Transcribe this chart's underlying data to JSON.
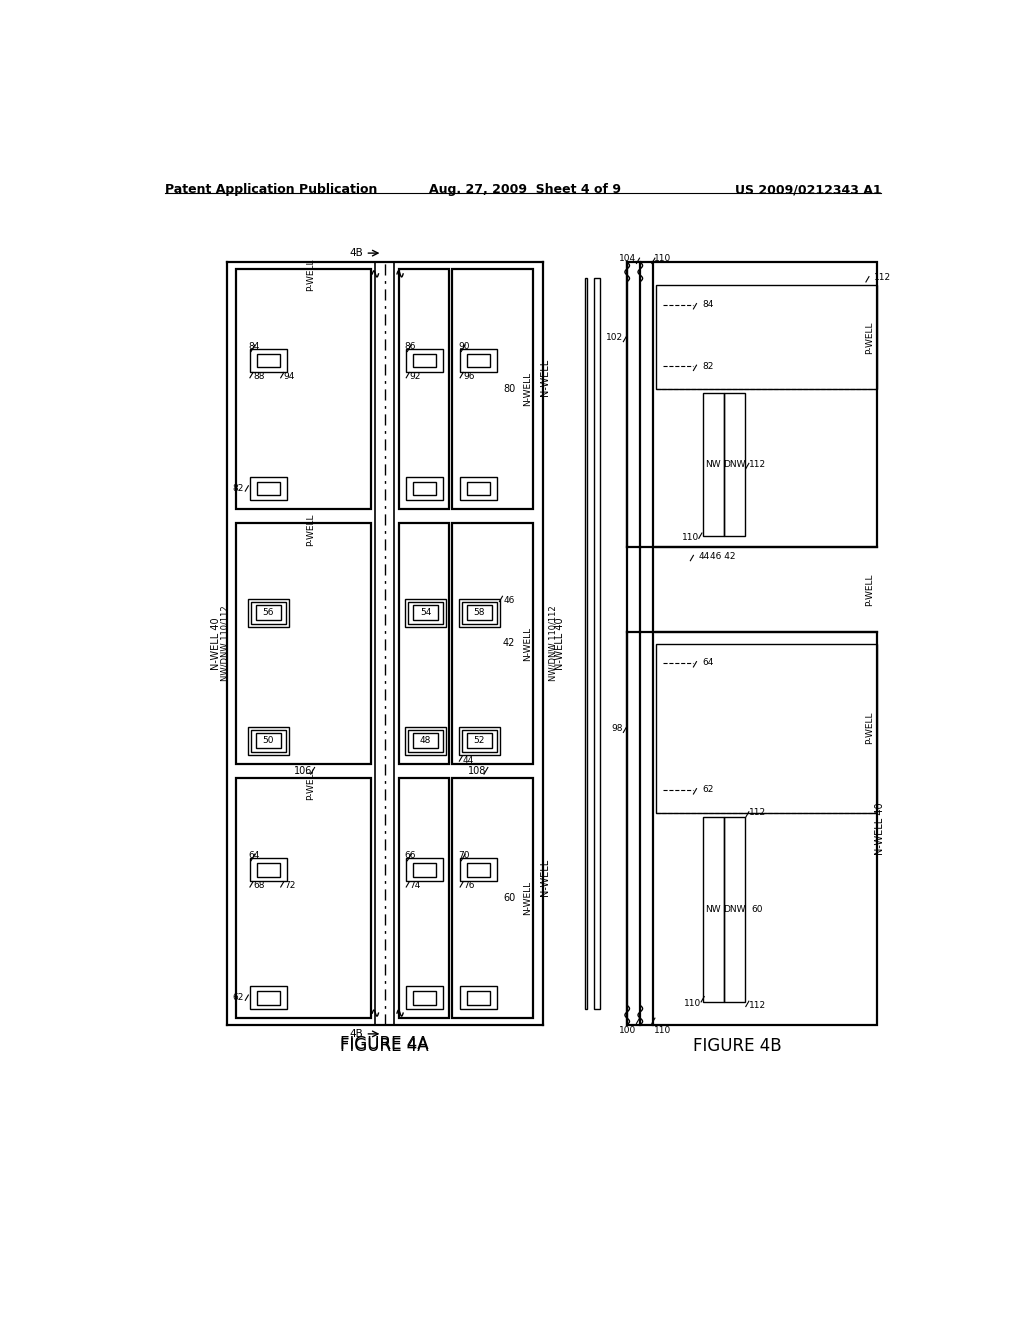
{
  "title_left": "Patent Application Publication",
  "title_mid": "Aug. 27, 2009  Sheet 4 of 9",
  "title_right": "US 2009/0212343 A1",
  "fig_label_4A": "FIGURE 4A",
  "fig_label_4B": "FIGURE 4B",
  "bg_color": "#ffffff",
  "line_color": "#000000"
}
